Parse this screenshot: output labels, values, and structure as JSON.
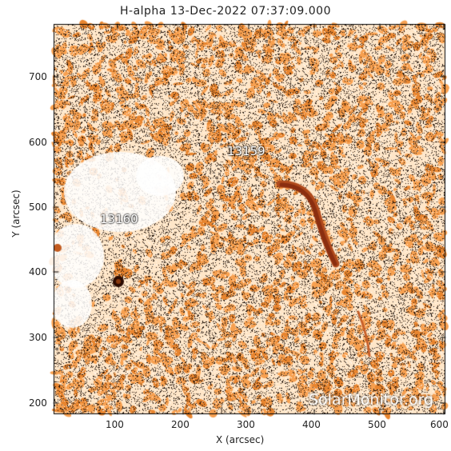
{
  "title": "H-alpha 13-Dec-2022 07:37:09.000",
  "x_axis": {
    "label": "X (arcsec)",
    "ticks": [
      "100",
      "200",
      "300",
      "400",
      "500",
      "600"
    ]
  },
  "y_axis": {
    "label": "Y (arcsec)",
    "ticks": [
      "200",
      "300",
      "400",
      "500",
      "600",
      "700"
    ]
  },
  "regions": [
    "13159",
    "13160"
  ],
  "watermark": "SolarMonitor.org",
  "colors": {
    "background": "#fff4e8",
    "texture_orange": "#f7a050",
    "texture_light": "#ffe6c8",
    "texture_dark": "#1a0d05",
    "filament": "#b04a1c",
    "sunspot": "#2a0a00",
    "frame": "#000000"
  }
}
